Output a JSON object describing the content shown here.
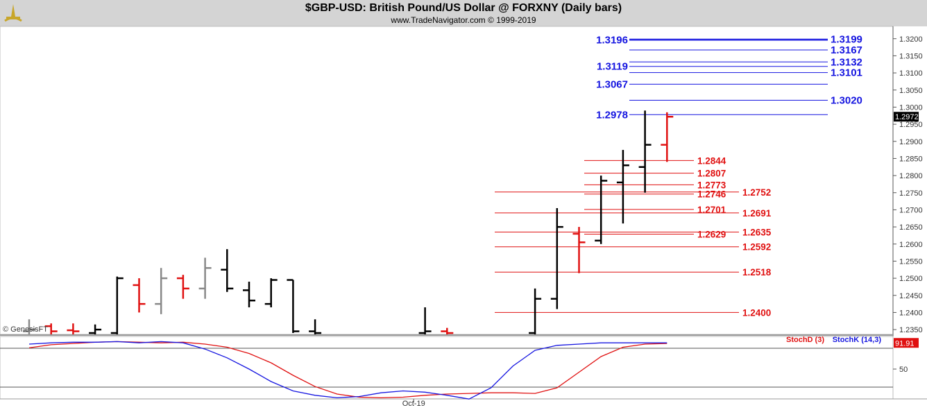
{
  "header": {
    "title": "$GBP-USD:  British Pound/US Dollar @ FORXNY  (Daily bars)",
    "subtitle": "www.TradeNavigator.com © 1999-2019"
  },
  "watermark": "© GenesisFT",
  "colors": {
    "up": "#000000",
    "down": "#e01010",
    "neutral": "#888888",
    "blue_level": "#1515e0",
    "red_level": "#e01010",
    "stoch_d": "#e01010",
    "stoch_k": "#1515e0"
  },
  "chart_data": [
    {
      "type": "ohlc",
      "title": "$GBP-USD:  British Pound/US Dollar @ FORXNY  (Daily bars)",
      "ylim": [
        1.2336,
        1.3236
      ],
      "y_ticks": [
        "1.3200",
        "1.3150",
        "1.3100",
        "1.3050",
        "1.3000",
        "1.2950",
        "1.2900",
        "1.2850",
        "1.2800",
        "1.2750",
        "1.2700",
        "1.2650",
        "1.2600",
        "1.2550",
        "1.2500",
        "1.2450",
        "1.2400",
        "1.2350"
      ],
      "last_price": "1.2972",
      "bars": [
        {
          "i": 0,
          "o": 1.2345,
          "h": 1.238,
          "l": 1.23,
          "c": 1.235,
          "color": "gray"
        },
        {
          "i": 1,
          "o": 1.236,
          "h": 1.2368,
          "l": 1.23,
          "c": 1.2345,
          "color": "red"
        },
        {
          "i": 2,
          "o": 1.2348,
          "h": 1.2368,
          "l": 1.23,
          "c": 1.2345,
          "color": "red"
        },
        {
          "i": 3,
          "o": 1.234,
          "h": 1.2365,
          "l": 1.23,
          "c": 1.235,
          "color": "black"
        },
        {
          "i": 4,
          "o": 1.234,
          "h": 1.2505,
          "l": 1.23,
          "c": 1.25,
          "color": "black"
        },
        {
          "i": 5,
          "o": 1.248,
          "h": 1.25,
          "l": 1.24,
          "c": 1.2425,
          "color": "red"
        },
        {
          "i": 6,
          "o": 1.2425,
          "h": 1.253,
          "l": 1.2395,
          "c": 1.25,
          "color": "gray"
        },
        {
          "i": 7,
          "o": 1.25,
          "h": 1.251,
          "l": 1.244,
          "c": 1.247,
          "color": "red"
        },
        {
          "i": 8,
          "o": 1.247,
          "h": 1.256,
          "l": 1.244,
          "c": 1.253,
          "color": "gray"
        },
        {
          "i": 9,
          "o": 1.2525,
          "h": 1.2585,
          "l": 1.246,
          "c": 1.247,
          "color": "black"
        },
        {
          "i": 10,
          "o": 1.2465,
          "h": 1.249,
          "l": 1.2415,
          "c": 1.2435,
          "color": "black"
        },
        {
          "i": 11,
          "o": 1.2425,
          "h": 1.25,
          "l": 1.2415,
          "c": 1.2495,
          "color": "black"
        },
        {
          "i": 12,
          "o": 1.2495,
          "h": 1.2495,
          "l": 1.234,
          "c": 1.2345,
          "color": "black"
        },
        {
          "i": 13,
          "o": 1.2345,
          "h": 1.238,
          "l": 1.23,
          "c": 1.234,
          "color": "black"
        },
        {
          "i": 18,
          "o": 1.234,
          "h": 1.2415,
          "l": 1.23,
          "c": 1.2345,
          "color": "black"
        },
        {
          "i": 19,
          "o": 1.2345,
          "h": 1.2355,
          "l": 1.23,
          "c": 1.234,
          "color": "red"
        },
        {
          "i": 23,
          "o": 1.234,
          "h": 1.247,
          "l": 1.23,
          "c": 1.244,
          "color": "black"
        },
        {
          "i": 24,
          "o": 1.244,
          "h": 1.2705,
          "l": 1.241,
          "c": 1.265,
          "color": "black"
        },
        {
          "i": 25,
          "o": 1.263,
          "h": 1.265,
          "l": 1.2515,
          "c": 1.2605,
          "color": "red"
        },
        {
          "i": 26,
          "o": 1.261,
          "h": 1.28,
          "l": 1.26,
          "c": 1.2785,
          "color": "black"
        },
        {
          "i": 27,
          "o": 1.278,
          "h": 1.2875,
          "l": 1.266,
          "c": 1.283,
          "color": "black"
        },
        {
          "i": 28,
          "o": 1.2825,
          "h": 1.299,
          "l": 1.275,
          "c": 1.289,
          "color": "black"
        },
        {
          "i": 29,
          "o": 1.289,
          "h": 1.2985,
          "l": 1.284,
          "c": 1.2972,
          "color": "red"
        }
      ],
      "levels_blue": [
        {
          "label": "1.3196",
          "value": 1.3196,
          "text_side": "left"
        },
        {
          "label": "1.3199",
          "value": 1.3199,
          "text_side": "right"
        },
        {
          "label": "1.3167",
          "value": 1.3167,
          "text_side": "right"
        },
        {
          "label": "1.3132",
          "value": 1.3132,
          "text_side": "right"
        },
        {
          "label": "1.3119",
          "value": 1.3119,
          "text_side": "left"
        },
        {
          "label": "1.3101",
          "value": 1.3101,
          "text_side": "right"
        },
        {
          "label": "1.3067",
          "value": 1.3067,
          "text_side": "left"
        },
        {
          "label": "1.3020",
          "value": 1.302,
          "text_side": "right"
        },
        {
          "label": "1.2978",
          "value": 1.2978,
          "text_side": "left"
        }
      ],
      "levels_red": [
        {
          "label": "1.2844",
          "value": 1.2844,
          "group": "short"
        },
        {
          "label": "1.2807",
          "value": 1.2807,
          "group": "short"
        },
        {
          "label": "1.2773",
          "value": 1.2773,
          "group": "short"
        },
        {
          "label": "1.2746",
          "value": 1.2746,
          "group": "short"
        },
        {
          "label": "1.2701",
          "value": 1.2701,
          "group": "short"
        },
        {
          "label": "1.2629",
          "value": 1.2629,
          "group": "short"
        },
        {
          "label": "1.2752",
          "value": 1.2752,
          "group": "long"
        },
        {
          "label": "1.2691",
          "value": 1.2691,
          "group": "long"
        },
        {
          "label": "1.2635",
          "value": 1.2635,
          "group": "long"
        },
        {
          "label": "1.2592",
          "value": 1.2592,
          "group": "long"
        },
        {
          "label": "1.2518",
          "value": 1.2518,
          "group": "long"
        },
        {
          "label": "1.2400",
          "value": 1.24,
          "group": "long"
        }
      ]
    },
    {
      "type": "line",
      "title": "",
      "ylim": [
        0,
        100
      ],
      "y_ticks": [
        "50"
      ],
      "last_value": "91.91",
      "x_ticks": [
        {
          "i": 16,
          "label": "Oct-19"
        }
      ],
      "series": [
        {
          "name": "StochD (3)",
          "values": [
            84,
            89,
            91,
            93,
            94,
            93,
            92,
            93,
            90,
            85,
            75,
            60,
            40,
            22,
            10,
            5,
            4,
            5,
            8,
            10,
            11,
            12,
            12,
            11,
            20,
            45,
            70,
            85,
            90,
            91
          ]
        },
        {
          "name": "StochK (14,3)",
          "values": [
            90,
            92,
            93,
            93,
            94,
            92,
            94,
            92,
            82,
            68,
            50,
            30,
            15,
            8,
            4,
            6,
            12,
            15,
            13,
            8,
            2,
            20,
            55,
            80,
            88,
            90,
            92,
            92,
            92,
            92
          ]
        }
      ]
    }
  ]
}
